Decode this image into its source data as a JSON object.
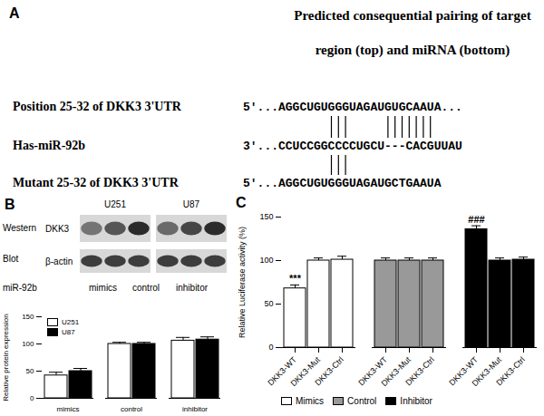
{
  "panel_labels": [
    "A",
    "B",
    "C"
  ],
  "panel_a": {
    "header": [
      "Predicted consequential pairing of target",
      "region (top) and miRNA (bottom)"
    ],
    "rows": [
      {
        "label": "Position 25-32 of DKK3 3'UTR",
        "sequence": "5'...AGGCUGUGGGUAGAUGUGCAAUA..."
      },
      {
        "label": "Has-miR-92b",
        "sequence": "3'...CCUCCGGCCCCUGCU---CACGUUAU"
      },
      {
        "label": "Mutant 25-32 of DKK3 3'UTR",
        "sequence": "5'...AGGCUGUGGGUAGAUGCTGAAUA"
      }
    ]
  },
  "western_blot": {
    "side_label": [
      "Western",
      "Blot"
    ],
    "cell_lines": [
      "U251",
      "U87"
    ],
    "rows": [
      "DKK3",
      "β-actin"
    ],
    "row_label": "miR-92b",
    "lanes": [
      "mimics",
      "control",
      "inhibitor"
    ]
  },
  "chart_data": [
    {
      "type": "bar",
      "categories": [
        "mimics",
        "control",
        "inhibitor"
      ],
      "series": [
        {
          "name": "U251",
          "color": "#ffffff",
          "values": [
            42,
            100,
            106
          ],
          "errors": [
            6,
            3,
            6
          ]
        },
        {
          "name": "U87",
          "color": "#000000",
          "values": [
            50,
            100,
            108
          ],
          "errors": [
            5,
            3,
            5
          ]
        }
      ],
      "ylabel": "Relative protein expression",
      "ylim": [
        0,
        150
      ],
      "yticks": [
        0,
        50,
        100,
        150
      ],
      "legend": "top-left"
    },
    {
      "type": "bar",
      "categories": [
        "DKK3-WT",
        "DKK3-Mut",
        "DKK3-Ctrl"
      ],
      "series": [
        {
          "name": "Mimics",
          "color": "#ffffff",
          "values": [
            68,
            100,
            101
          ],
          "errors": [
            4,
            3,
            4
          ]
        },
        {
          "name": "Control",
          "color": "#999999",
          "values": [
            100,
            100,
            100
          ],
          "errors": [
            3,
            3,
            3
          ]
        },
        {
          "name": "Inhibitor",
          "color": "#000000",
          "values": [
            136,
            100,
            101
          ],
          "errors": [
            4,
            3,
            3
          ]
        }
      ],
      "ylabel": "Relative Luciferase activity (%)",
      "ylim": [
        0,
        150
      ],
      "yticks": [
        0,
        50,
        100,
        150
      ],
      "legend": "bottom-left",
      "annotations": [
        {
          "text": "***",
          "series": "Mimics",
          "category": "DKK3-WT"
        },
        {
          "text": "###",
          "series": "Inhibitor",
          "category": "DKK3-WT"
        }
      ]
    }
  ]
}
